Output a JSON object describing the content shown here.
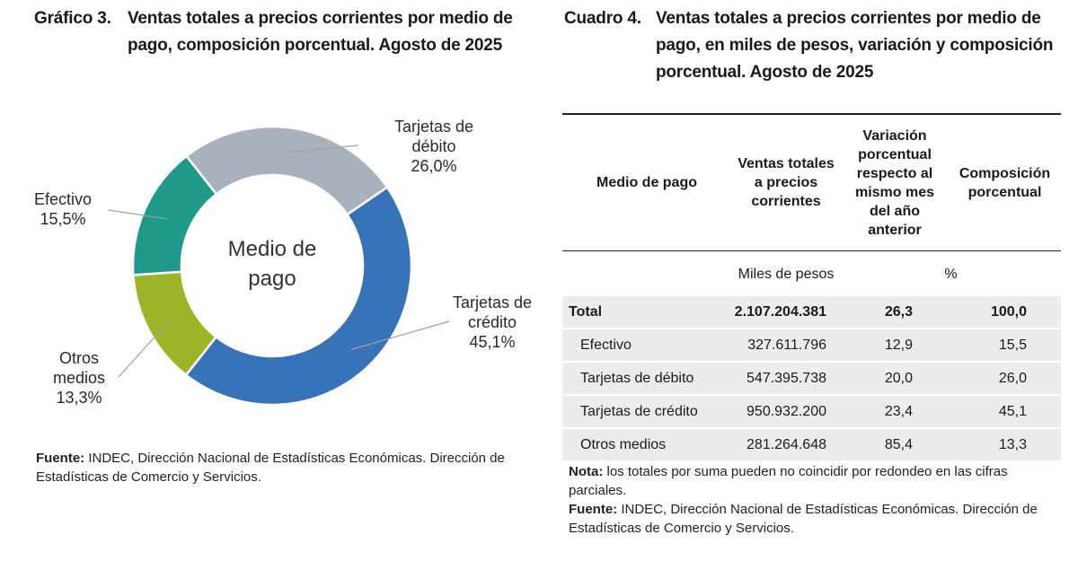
{
  "chart_section": {
    "number": "Gráfico 3.",
    "title": "Ventas totales a precios corrientes por medio de pago, composición porcentual. Agosto de 2025",
    "source_label": "Fuente:",
    "source_text": "INDEC, Dirección Nacional de Estadísticas Económicas. Dirección de Estadísticas de Comercio y Servicios."
  },
  "chart_data": {
    "type": "pie",
    "variant": "donut",
    "title": "Ventas totales a precios corrientes por medio de pago, composición porcentual. Agosto de 2025",
    "center_label": [
      "Medio de",
      "pago"
    ],
    "unit": "%",
    "categories": [
      "Tarjetas de débito",
      "Tarjetas de crédito",
      "Otros medios",
      "Efectivo"
    ],
    "values": [
      26.0,
      45.1,
      13.3,
      15.5
    ],
    "value_labels": [
      "26,0%",
      "45,1%",
      "13,3%",
      "15,5%"
    ],
    "label_lines": [
      [
        "Tarjetas de",
        "débito",
        "26,0%"
      ],
      [
        "Tarjetas de",
        "crédito",
        "45,1%"
      ],
      [
        "Otros",
        "medios",
        "13,3%"
      ],
      [
        "Efectivo",
        "15,5%"
      ]
    ],
    "colors": [
      "#a9b1bc",
      "#3873b8",
      "#9bb526",
      "#1f9a8a"
    ]
  },
  "table_section": {
    "number": "Cuadro 4.",
    "title": "Ventas totales a precios corrientes por medio de pago, en miles de pesos, variación y composición porcentual. Agosto de 2025",
    "headers": {
      "medio": "Medio de pago",
      "ventas": "Ventas totales a precios corrientes",
      "variacion": "Variación porcentual respecto al mismo mes del año anterior",
      "composicion": "Composición porcentual"
    },
    "units": {
      "ventas": "Miles de pesos",
      "pct": "%"
    },
    "total_row": {
      "label": "Total",
      "ventas": "2.107.204.381",
      "variacion": "26,3",
      "composicion": "100,0"
    },
    "rows": [
      {
        "label": "Efectivo",
        "ventas": "327.611.796",
        "variacion": "12,9",
        "composicion": "15,5"
      },
      {
        "label": "Tarjetas de débito",
        "ventas": "547.395.738",
        "variacion": "20,0",
        "composicion": "26,0"
      },
      {
        "label": "Tarjetas de crédito",
        "ventas": "950.932.200",
        "variacion": "23,4",
        "composicion": "45,1"
      },
      {
        "label": "Otros medios",
        "ventas": "281.264.648",
        "variacion": "85,4",
        "composicion": "13,3"
      }
    ],
    "note_label": "Nota:",
    "note_text": "los totales por suma pueden no coincidir por redondeo en las cifras parciales.",
    "source_label": "Fuente:",
    "source_text": "INDEC, Dirección Nacional de Estadísticas Económicas. Dirección de Estadísticas de Comercio y Servicios."
  }
}
